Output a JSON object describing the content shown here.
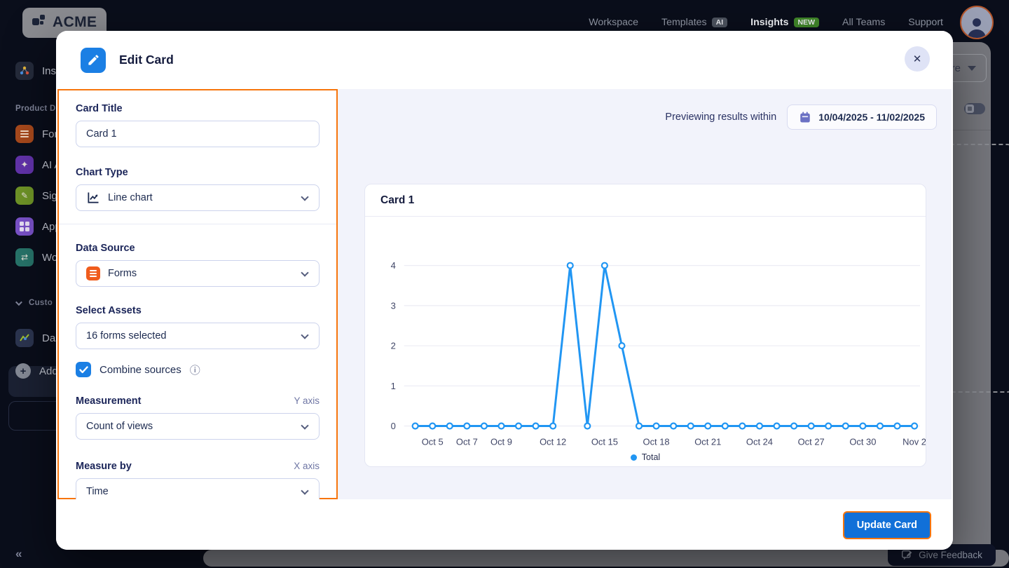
{
  "colors": {
    "accent_orange": "#f7750c",
    "accent_blue": "#1b7fe4",
    "chart_line": "#2196f3",
    "update_blue": "#1170d8"
  },
  "brand": {
    "name": "ACME"
  },
  "nav": {
    "links": [
      {
        "label": "Workspace"
      },
      {
        "label": "Templates",
        "badge": "AI"
      },
      {
        "label": "Insights",
        "badge": "NEW"
      },
      {
        "label": "All Teams"
      },
      {
        "label": "Support"
      }
    ]
  },
  "sidebar": {
    "insights_label": "Insi",
    "section_label": "Product Da",
    "items": [
      {
        "label": "Form"
      },
      {
        "label": "AI A"
      },
      {
        "label": "Sign"
      },
      {
        "label": "App"
      },
      {
        "label": "Wor"
      }
    ],
    "custom_label": "Custo",
    "dashboards_label": "Das",
    "add_label": "Add"
  },
  "modal": {
    "title": "Edit Card",
    "form": {
      "card_title": {
        "label": "Card Title",
        "value": "Card 1"
      },
      "chart_type": {
        "label": "Chart Type",
        "value": "Line chart"
      },
      "data_source": {
        "label": "Data Source",
        "value": "Forms"
      },
      "select_assets": {
        "label": "Select Assets",
        "value": "16 forms selected"
      },
      "combine_sources": {
        "label": "Combine sources",
        "checked": true
      },
      "measurement": {
        "label": "Measurement",
        "axis": "Y axis",
        "value": "Count of views"
      },
      "measure_by": {
        "label": "Measure by",
        "axis": "X axis",
        "value": "Time"
      }
    },
    "footer": {
      "update_label": "Update Card"
    }
  },
  "preview": {
    "heading": "Previewing results within",
    "date_range": "10/04/2025 - 11/02/2025",
    "card_title": "Card 1"
  },
  "page": {
    "feedback_label": "Give Feedback",
    "share_fragment": "re",
    "collapse_glyph": "«"
  },
  "chart_data": {
    "type": "line",
    "title": "Card 1",
    "x": [
      "Oct 4",
      "Oct 5",
      "Oct 6",
      "Oct 7",
      "Oct 8",
      "Oct 9",
      "Oct 10",
      "Oct 11",
      "Oct 12",
      "Oct 13",
      "Oct 14",
      "Oct 15",
      "Oct 16",
      "Oct 17",
      "Oct 18",
      "Oct 19",
      "Oct 20",
      "Oct 21",
      "Oct 22",
      "Oct 23",
      "Oct 24",
      "Oct 25",
      "Oct 26",
      "Oct 27",
      "Oct 28",
      "Oct 29",
      "Oct 30",
      "Oct 31",
      "Nov 1",
      "Nov 2"
    ],
    "series": [
      {
        "name": "Total",
        "values": [
          0,
          0,
          0,
          0,
          0,
          0,
          0,
          0,
          0,
          4,
          0,
          4,
          2,
          0,
          0,
          0,
          0,
          0,
          0,
          0,
          0,
          0,
          0,
          0,
          0,
          0,
          0,
          0,
          0,
          0
        ]
      }
    ],
    "x_ticks": [
      {
        "label": "Oct 5",
        "index": 1
      },
      {
        "label": "Oct 7",
        "index": 3
      },
      {
        "label": "Oct 9",
        "index": 5
      },
      {
        "label": "Oct 12",
        "index": 8
      },
      {
        "label": "Oct 15",
        "index": 11
      },
      {
        "label": "Oct 18",
        "index": 14
      },
      {
        "label": "Oct 21",
        "index": 17
      },
      {
        "label": "Oct 24",
        "index": 20
      },
      {
        "label": "Oct 27",
        "index": 23
      },
      {
        "label": "Oct 30",
        "index": 26
      },
      {
        "label": "Nov 2",
        "index": 29
      }
    ],
    "y_ticks": [
      0,
      1,
      2,
      3,
      4
    ],
    "ylim": [
      0,
      4
    ],
    "xlabel": "",
    "ylabel": "",
    "grid": true,
    "legend_position": "bottom",
    "line_color": "#2196f3"
  }
}
